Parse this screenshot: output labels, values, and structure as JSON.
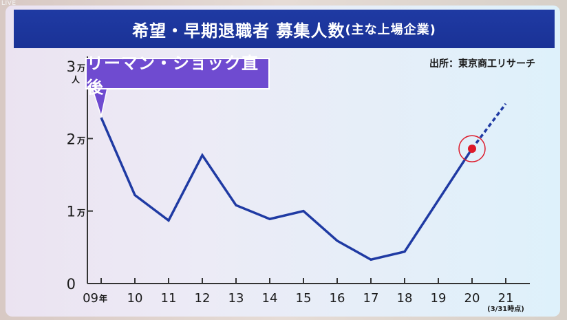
{
  "live_label": "LIVE",
  "title": {
    "main": "希望・早期退職者 募集人数",
    "sub": "(主な上場企業)"
  },
  "source": "出所：東京商工リサーチ",
  "callout": "リーマン・ショック直後",
  "chart_data": {
    "type": "line",
    "title": "希望・早期退職者 募集人数(主な上場企業)",
    "categories": [
      "09",
      "10",
      "11",
      "12",
      "13",
      "14",
      "15",
      "16",
      "17",
      "18",
      "19",
      "20",
      "21"
    ],
    "x_tick_labels": [
      "09年",
      "10",
      "11",
      "12",
      "13",
      "14",
      "15",
      "16",
      "17",
      "18",
      "19",
      "20",
      "21"
    ],
    "x_note": "(3/31時点)",
    "values": [
      22900,
      12200,
      8700,
      17700,
      10800,
      8900,
      10000,
      5900,
      3300,
      4400,
      null,
      18600,
      null
    ],
    "projection": {
      "from": [
        "20",
        18600
      ],
      "to": [
        "21",
        24800
      ]
    },
    "highlight_point": {
      "x": "20",
      "y": 18600
    },
    "y_ticks": [
      {
        "value": 0,
        "label": "0",
        "unit": ""
      },
      {
        "value": 10000,
        "label": "1",
        "unit": "万"
      },
      {
        "value": 20000,
        "label": "2",
        "unit": "万"
      },
      {
        "value": 30000,
        "label": "3",
        "unit": "万人"
      }
    ],
    "ylim": [
      0,
      30000
    ],
    "grid": false,
    "colors": {
      "line": "#1f3aa3",
      "marker": "#dd1a2a",
      "callout": "#6f4bd0"
    }
  }
}
